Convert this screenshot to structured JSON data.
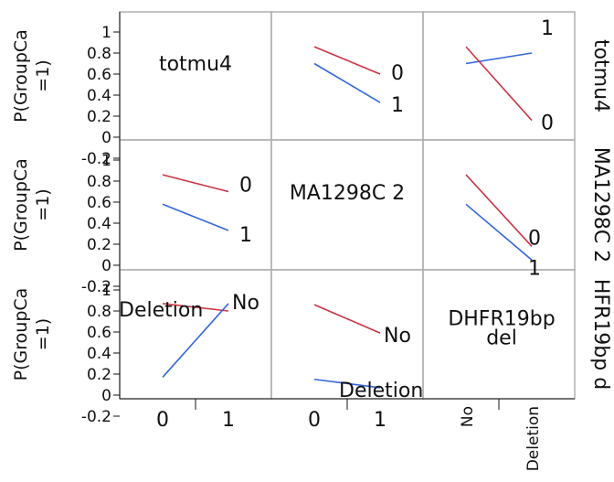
{
  "chart_data": {
    "type": "line",
    "title": "",
    "ylabel_lines": [
      "P(GroupCa",
      "=1)"
    ],
    "ylim": [
      -0.2,
      1.0
    ],
    "yticks": [
      "1",
      "0.8",
      "0.6",
      "0.4",
      "0.2",
      "0",
      "-0.2"
    ],
    "grid": false,
    "factors": [
      {
        "name": "totmu4",
        "diag_label": [
          "totmu4"
        ],
        "levels": [
          "0",
          "1"
        ]
      },
      {
        "name": "MA1298C 2",
        "diag_label": [
          "MA1298C 2"
        ],
        "levels": [
          "0",
          "1"
        ]
      },
      {
        "name": "DHFR19bp del",
        "diag_label": [
          "DHFR19bp",
          "del"
        ],
        "levels": [
          "No",
          "Deletion"
        ]
      }
    ],
    "colors": {
      "first_level": "#cc3344",
      "second_level": "#3366dd"
    },
    "panels": [
      {
        "row": 0,
        "col": 1,
        "series": [
          {
            "name": "0",
            "color": "first_level",
            "values": [
              0.86,
              0.6
            ]
          },
          {
            "name": "1",
            "color": "second_level",
            "values": [
              0.7,
              0.33
            ]
          }
        ]
      },
      {
        "row": 0,
        "col": 2,
        "series": [
          {
            "name": "1",
            "color": "second_level",
            "values": [
              0.7,
              0.8
            ]
          },
          {
            "name": "0",
            "color": "first_level",
            "values": [
              0.86,
              0.16
            ]
          }
        ]
      },
      {
        "row": 1,
        "col": 0,
        "series": [
          {
            "name": "0",
            "color": "first_level",
            "values": [
              0.86,
              0.7
            ]
          },
          {
            "name": "1",
            "color": "second_level",
            "values": [
              0.58,
              0.33
            ]
          }
        ]
      },
      {
        "row": 1,
        "col": 2,
        "series": [
          {
            "name": "0",
            "color": "first_level",
            "values": [
              0.86,
              0.18
            ]
          },
          {
            "name": "1",
            "color": "second_level",
            "values": [
              0.58,
              0.05
            ]
          }
        ]
      },
      {
        "row": 2,
        "col": 0,
        "series": [
          {
            "name": "Deletion",
            "color": "first_level",
            "values": [
              0.87,
              0.8
            ]
          },
          {
            "name": "No",
            "color": "second_level",
            "values": [
              0.17,
              0.87
            ]
          }
        ]
      },
      {
        "row": 2,
        "col": 1,
        "series": [
          {
            "name": "No",
            "color": "first_level",
            "values": [
              0.86,
              0.59
            ]
          },
          {
            "name": "Deletion",
            "color": "second_level",
            "values": [
              0.15,
              0.07
            ]
          }
        ]
      }
    ],
    "row_strip": [
      "totmu4",
      "MA1298C 2",
      "HFR19bp d"
    ]
  }
}
